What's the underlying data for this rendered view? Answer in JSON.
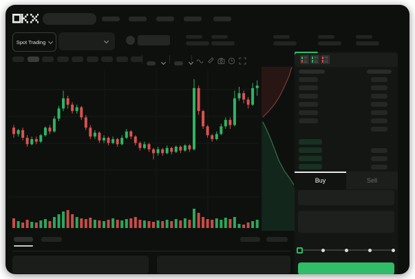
{
  "app": {
    "name": "OKX",
    "product": "trading-terminal"
  },
  "colors": {
    "background": "#0e100e",
    "accent_green": "#2fbd68",
    "candle_green": "#2eb563",
    "candle_red": "#d9534e",
    "depth_ask_fill": "#281615",
    "depth_ask_line": "#8a453f",
    "depth_bid_fill": "#12261b",
    "depth_bid_line": "#3f8059",
    "skeleton": "#272927",
    "dim_text": "#6b6d6b"
  },
  "header": {
    "nav_item_count": 5
  },
  "ticker": {
    "market_selector": "Spot Trading",
    "stat_pair_count": 5
  },
  "chart_toolbar": {
    "timeframe_count": 9,
    "active_timeframe_index": 1,
    "icon_names": [
      "indicator-wave-icon",
      "draw-icon",
      "camera-icon",
      "clock-icon",
      "fullscreen-icon"
    ]
  },
  "chart_data": {
    "type": "candlestick",
    "title": "",
    "axes_labeled": false,
    "note": "Wireframe trading chart - no numeric axis labels visible; OHLC given on relative 0-100 price scale, volumes in px-height units",
    "grid": true,
    "candles_ohlc": [
      [
        55,
        57,
        47,
        50
      ],
      [
        50,
        54,
        48,
        53
      ],
      [
        53,
        55,
        45,
        47
      ],
      [
        47,
        49,
        40,
        42
      ],
      [
        42,
        48,
        41,
        46
      ],
      [
        46,
        48,
        42,
        44
      ],
      [
        44,
        50,
        43,
        49
      ],
      [
        49,
        56,
        48,
        55
      ],
      [
        55,
        57,
        50,
        52
      ],
      [
        52,
        64,
        51,
        62
      ],
      [
        62,
        72,
        60,
        70
      ],
      [
        70,
        84,
        68,
        78
      ],
      [
        78,
        80,
        70,
        73
      ],
      [
        73,
        75,
        66,
        68
      ],
      [
        68,
        73,
        66,
        71
      ],
      [
        71,
        72,
        61,
        63
      ],
      [
        63,
        65,
        53,
        55
      ],
      [
        55,
        57,
        46,
        48
      ],
      [
        48,
        53,
        46,
        51
      ],
      [
        51,
        52,
        43,
        45
      ],
      [
        45,
        49,
        43,
        47
      ],
      [
        47,
        48,
        41,
        43
      ],
      [
        43,
        48,
        42,
        46
      ],
      [
        46,
        47,
        40,
        42
      ],
      [
        42,
        49,
        41,
        47
      ],
      [
        47,
        54,
        46,
        52
      ],
      [
        52,
        53,
        46,
        48
      ],
      [
        48,
        49,
        41,
        43
      ],
      [
        43,
        44,
        37,
        39
      ],
      [
        39,
        44,
        38,
        42
      ],
      [
        42,
        43,
        36,
        38
      ],
      [
        38,
        39,
        30,
        35
      ],
      [
        35,
        40,
        33,
        38
      ],
      [
        38,
        39,
        33,
        35
      ],
      [
        35,
        41,
        34,
        39
      ],
      [
        39,
        40,
        34,
        36
      ],
      [
        36,
        41,
        35,
        40
      ],
      [
        40,
        41,
        35,
        37
      ],
      [
        37,
        42,
        36,
        41
      ],
      [
        41,
        42,
        36,
        38
      ],
      [
        38,
        93,
        37,
        86
      ],
      [
        86,
        88,
        65,
        68
      ],
      [
        68,
        69,
        54,
        56
      ],
      [
        56,
        57,
        47,
        49
      ],
      [
        49,
        50,
        44,
        46
      ],
      [
        46,
        52,
        45,
        50
      ],
      [
        50,
        58,
        49,
        56
      ],
      [
        56,
        63,
        54,
        61
      ],
      [
        61,
        63,
        54,
        57
      ],
      [
        57,
        84,
        56,
        78
      ],
      [
        78,
        87,
        76,
        82
      ],
      [
        82,
        84,
        74,
        77
      ],
      [
        77,
        79,
        70,
        73
      ],
      [
        73,
        90,
        72,
        86
      ],
      [
        86,
        92,
        80,
        88
      ]
    ],
    "volumes": [
      14,
      10,
      8,
      12,
      9,
      8,
      11,
      13,
      10,
      16,
      20,
      24,
      26,
      20,
      16,
      14,
      13,
      15,
      12,
      11,
      10,
      12,
      14,
      12,
      11,
      13,
      14,
      16,
      12,
      11,
      10,
      9,
      11,
      10,
      12,
      10,
      13,
      11,
      14,
      12,
      28,
      22,
      16,
      13,
      12,
      14,
      12,
      15,
      13,
      16,
      6,
      5,
      8,
      10,
      12
    ],
    "depth_preview": {
      "asks_curve": [
        [
          0.92,
          0
        ],
        [
          0.83,
          0.18
        ],
        [
          0.7,
          0.37
        ],
        [
          0.56,
          0.55
        ],
        [
          0.4,
          0.71
        ],
        [
          0.23,
          0.84
        ],
        [
          0.04,
          0.96
        ]
      ],
      "bids_curve": [
        [
          0.04,
          0.02
        ],
        [
          0.15,
          0.13
        ],
        [
          0.27,
          0.27
        ],
        [
          0.4,
          0.44
        ],
        [
          0.52,
          0.6
        ],
        [
          0.69,
          0.76
        ],
        [
          0.85,
          0.87
        ],
        [
          0.98,
          0.97
        ]
      ]
    }
  },
  "orderbook": {
    "view_modes": [
      "book-both",
      "book-bids",
      "book-asks"
    ],
    "ask_row_count": 7,
    "bid_row_count": 4,
    "price_highlight_color": "#2fbd68"
  },
  "trade_panel": {
    "tabs": [
      {
        "label": "Buy",
        "active": true
      },
      {
        "label": "Sell",
        "active": false
      }
    ],
    "amount_slider_stops": 5,
    "slider_position_index": 0
  },
  "bottom_bar": {
    "tab_count": 2,
    "active_tab_index": 0,
    "right_link_count": 2,
    "panel_count": 2
  }
}
